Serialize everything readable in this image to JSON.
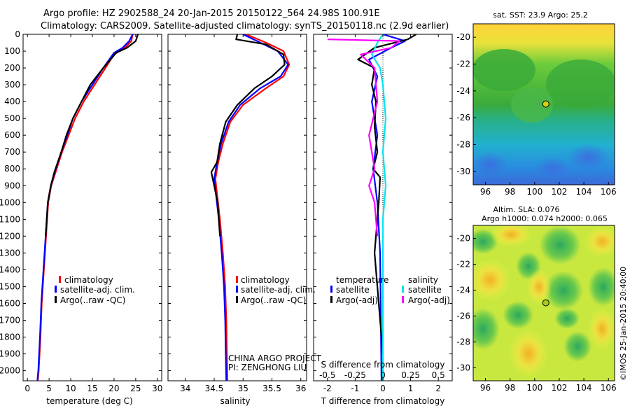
{
  "header": {
    "line1": "Argo profile: HZ 2902588_24 20-Jan-2015 20150122_564 24.98S 100.91E",
    "line2": "Climatology: CARS2009. Satellite-adjusted climatology: synTS_20150118.nc (2.9d earlier)"
  },
  "colors": {
    "climatology": "#ff0000",
    "satellite": "#0000ff",
    "argo": "#000000",
    "sat_salinity": "#00e5ee",
    "argo_salinity": "#ff00ff"
  },
  "depth_axis": {
    "min": 0,
    "max": 2060,
    "ticks": [
      0,
      100,
      200,
      300,
      400,
      500,
      600,
      700,
      800,
      900,
      1000,
      1100,
      1200,
      1300,
      1400,
      1500,
      1600,
      1700,
      1800,
      1900,
      2000
    ]
  },
  "credit": {
    "line1": "CHINA ARGO PROJECT",
    "line2": "PI: ZENGHONG LIU"
  },
  "watermark": "©IMOS 25-Jan-2015 20:40:00",
  "chart_data": [
    {
      "id": "temperature",
      "type": "line",
      "xlabel": "temperature (deg C)",
      "xlim": [
        -1,
        31
      ],
      "xticks": [
        0,
        5,
        10,
        15,
        20,
        25,
        30
      ],
      "legend": [
        "climatology",
        "satellite-adj. clim.",
        "Argo(..raw -QC)"
      ],
      "series": [
        {
          "key": "climatology",
          "name": "climatology",
          "color": "#ff0000",
          "points": [
            [
              24.3,
              0
            ],
            [
              24,
              40
            ],
            [
              22.5,
              80
            ],
            [
              20,
              120
            ],
            [
              18,
              200
            ],
            [
              15.5,
              300
            ],
            [
              13,
              400
            ],
            [
              11,
              500
            ],
            [
              9.5,
              600
            ],
            [
              8,
              700
            ],
            [
              6.5,
              820
            ],
            [
              5.5,
              900
            ],
            [
              4.8,
              1000
            ],
            [
              4.3,
              1200
            ],
            [
              3.8,
              1400
            ],
            [
              3.3,
              1600
            ],
            [
              3,
              1800
            ],
            [
              2.6,
              2000
            ],
            [
              2.4,
              2060
            ]
          ]
        },
        {
          "key": "satellite",
          "name": "satellite-adj. clim.",
          "color": "#0000ff",
          "points": [
            [
              24.3,
              0
            ],
            [
              23.5,
              40
            ],
            [
              22,
              80
            ],
            [
              20,
              110
            ],
            [
              17.5,
              200
            ],
            [
              15,
              300
            ],
            [
              12.5,
              400
            ],
            [
              10.5,
              500
            ],
            [
              9.2,
              600
            ],
            [
              7.8,
              700
            ],
            [
              6.3,
              820
            ],
            [
              5.4,
              900
            ],
            [
              4.7,
              1000
            ],
            [
              4.2,
              1200
            ],
            [
              3.7,
              1400
            ],
            [
              3.2,
              1600
            ],
            [
              2.9,
              1800
            ],
            [
              2.5,
              2000
            ],
            [
              2.3,
              2060
            ]
          ]
        },
        {
          "key": "argo",
          "name": "Argo(..raw -QC)",
          "color": "#000000",
          "points": [
            [
              25.5,
              0
            ],
            [
              25,
              40
            ],
            [
              23,
              80
            ],
            [
              20.5,
              110
            ],
            [
              17.5,
              200
            ],
            [
              14.5,
              300
            ],
            [
              12.5,
              400
            ],
            [
              10.5,
              500
            ],
            [
              9,
              600
            ],
            [
              7.8,
              700
            ],
            [
              6.2,
              820
            ],
            [
              5.4,
              900
            ],
            [
              4.7,
              1000
            ],
            [
              4.2,
              1200
            ]
          ]
        }
      ]
    },
    {
      "id": "salinity",
      "type": "line",
      "xlabel": "salinity",
      "xlim": [
        33.7,
        36.1
      ],
      "xticks": [
        34,
        34.5,
        35,
        35.5,
        36
      ],
      "legend": [
        "climatology",
        "satellite-adj. clim.",
        "Argo(..raw -QC)"
      ],
      "series": [
        {
          "key": "climatology",
          "name": "climatology",
          "color": "#ff0000",
          "points": [
            [
              35.05,
              0
            ],
            [
              35.4,
              50
            ],
            [
              35.7,
              100
            ],
            [
              35.8,
              180
            ],
            [
              35.7,
              250
            ],
            [
              35.4,
              320
            ],
            [
              35.0,
              420
            ],
            [
              34.78,
              520
            ],
            [
              34.65,
              650
            ],
            [
              34.57,
              760
            ],
            [
              34.52,
              860
            ],
            [
              34.55,
              950
            ],
            [
              34.6,
              1100
            ],
            [
              34.65,
              1300
            ],
            [
              34.69,
              1500
            ],
            [
              34.71,
              1700
            ],
            [
              34.72,
              1900
            ],
            [
              34.73,
              2060
            ]
          ]
        },
        {
          "key": "satellite",
          "name": "satellite-adj. clim.",
          "color": "#0000ff",
          "points": [
            [
              35.0,
              0
            ],
            [
              35.3,
              50
            ],
            [
              35.6,
              100
            ],
            [
              35.78,
              180
            ],
            [
              35.65,
              250
            ],
            [
              35.3,
              320
            ],
            [
              34.95,
              420
            ],
            [
              34.75,
              520
            ],
            [
              34.62,
              650
            ],
            [
              34.55,
              760
            ],
            [
              34.5,
              860
            ],
            [
              34.53,
              950
            ],
            [
              34.58,
              1100
            ],
            [
              34.63,
              1300
            ],
            [
              34.67,
              1500
            ],
            [
              34.69,
              1700
            ],
            [
              34.7,
              1900
            ],
            [
              34.71,
              2060
            ]
          ]
        },
        {
          "key": "argo",
          "name": "Argo(..raw -QC)",
          "color": "#000000",
          "points": [
            [
              34.9,
              0
            ],
            [
              34.88,
              30
            ],
            [
              35.4,
              60
            ],
            [
              35.7,
              120
            ],
            [
              35.72,
              180
            ],
            [
              35.5,
              250
            ],
            [
              35.2,
              320
            ],
            [
              34.9,
              420
            ],
            [
              34.7,
              520
            ],
            [
              34.6,
              650
            ],
            [
              34.55,
              760
            ],
            [
              34.45,
              820
            ],
            [
              34.5,
              900
            ],
            [
              34.56,
              1000
            ],
            [
              34.6,
              1200
            ]
          ]
        }
      ]
    },
    {
      "id": "difference",
      "type": "line",
      "xlabel": "T difference from climatology",
      "xlabel_top": "S difference from climatology",
      "xlim": [
        -2.5,
        2.5
      ],
      "xticks": [
        -2,
        -1,
        0,
        1,
        2
      ],
      "xticks_top": [
        -0.5,
        -0.25,
        0,
        0.25,
        0.5
      ],
      "legend_groups": {
        "temperature": "temperature",
        "salinity": "salinity"
      },
      "legend": [
        "satellite",
        "Argo(-adj)",
        "satellite",
        "Argo(-adj)"
      ],
      "series": [
        {
          "key": "satellite",
          "name": "satellite",
          "color": "#0000ff",
          "points": [
            [
              0,
              0
            ],
            [
              0.8,
              40
            ],
            [
              0.3,
              80
            ],
            [
              -0.5,
              150
            ],
            [
              -0.2,
              250
            ],
            [
              -0.4,
              400
            ],
            [
              -0.2,
              600
            ],
            [
              -0.35,
              800
            ],
            [
              -0.2,
              1000
            ],
            [
              -0.1,
              1300
            ],
            [
              -0.05,
              2060
            ]
          ]
        },
        {
          "key": "argo",
          "name": "Argo(-adj)",
          "color": "#000000",
          "points": [
            [
              1.2,
              0
            ],
            [
              0.9,
              30
            ],
            [
              -0.3,
              80
            ],
            [
              -0.9,
              150
            ],
            [
              -0.3,
              200
            ],
            [
              -0.4,
              300
            ],
            [
              -0.25,
              400
            ],
            [
              -0.3,
              550
            ],
            [
              -0.2,
              700
            ],
            [
              -0.35,
              800
            ],
            [
              -0.1,
              850
            ],
            [
              -0.15,
              1000
            ],
            [
              -0.3,
              1300
            ],
            [
              -0.2,
              1500
            ],
            [
              -0.05,
              1800
            ],
            [
              0,
              1900
            ]
          ]
        },
        {
          "key": "sat_salinity",
          "name": "satellite",
          "color": "#00e5ee",
          "points": [
            [
              0,
              0
            ],
            [
              -0.2,
              50
            ],
            [
              -0.4,
              120
            ],
            [
              -0.1,
              200
            ],
            [
              0,
              300
            ],
            [
              0.1,
              500
            ],
            [
              0,
              700
            ],
            [
              0.1,
              900
            ],
            [
              0,
              1100
            ],
            [
              0,
              1300
            ],
            [
              0,
              2060
            ]
          ]
        },
        {
          "key": "argo_salinity",
          "name": "Argo(-adj)",
          "color": "#ff00ff",
          "points": [
            [
              -2.0,
              30
            ],
            [
              0.6,
              40
            ],
            [
              0.3,
              80
            ],
            [
              -0.8,
              120
            ],
            [
              -0.3,
              200
            ],
            [
              -0.2,
              400
            ],
            [
              -0.5,
              600
            ],
            [
              -0.3,
              800
            ],
            [
              -0.5,
              900
            ],
            [
              -0.3,
              1000
            ],
            [
              -0.2,
              1200
            ]
          ]
        }
      ]
    },
    {
      "id": "sst_map",
      "type": "heatmap",
      "title": "sat. SST: 23.9 Argo: 25.2",
      "xlim": [
        95,
        106.5
      ],
      "ylim": [
        -31,
        -19
      ],
      "xticks": [
        96,
        98,
        100,
        102,
        104,
        106
      ],
      "yticks": [
        -20,
        -22,
        -24,
        -26,
        -28,
        -30
      ],
      "argo_position": [
        100.91,
        -24.98
      ]
    },
    {
      "id": "sla_map",
      "type": "heatmap",
      "title": "Altim. SLA: 0.076",
      "subtitle": "Argo h1000: 0.074 h2000: 0.065",
      "xlim": [
        95,
        106.5
      ],
      "ylim": [
        -31,
        -19
      ],
      "xticks": [
        96,
        98,
        100,
        102,
        104,
        106
      ],
      "yticks": [
        -20,
        -22,
        -24,
        -26,
        -28,
        -30
      ],
      "argo_position": [
        100.91,
        -24.98
      ]
    }
  ]
}
